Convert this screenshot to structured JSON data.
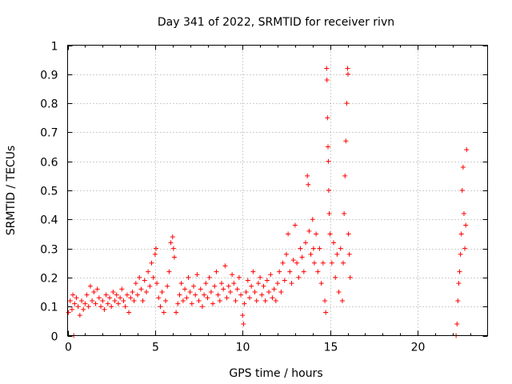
{
  "chart_data": {
    "type": "scatter",
    "title": "Day 341 of 2022, SRMTID for receiver rivn",
    "xlabel": "GPS time / hours",
    "ylabel": "SRMTID / TECUs",
    "xlim": [
      0,
      24
    ],
    "ylim": [
      0,
      1
    ],
    "xticks": [
      0,
      5,
      10,
      15,
      20
    ],
    "xtick_labels": [
      "0",
      "5",
      "10",
      "15",
      "20"
    ],
    "yticks": [
      0,
      0.1,
      0.2,
      0.3,
      0.4,
      0.5,
      0.6,
      0.7,
      0.8,
      0.9,
      1
    ],
    "ytick_labels": [
      "0",
      "0.1",
      "0.2",
      "0.3",
      "0.4",
      "0.5",
      "0.6",
      "0.7",
      "0.8",
      "0.9",
      "1"
    ],
    "grid": true,
    "marker": "+",
    "color": "#ff0000",
    "series": [
      {
        "name": "SRMTID",
        "points": [
          [
            0.05,
            0.08
          ],
          [
            0.15,
            0.12
          ],
          [
            0.25,
            0.09
          ],
          [
            0.3,
            0.14
          ],
          [
            0.35,
            0.0
          ],
          [
            0.4,
            0.11
          ],
          [
            0.5,
            0.13
          ],
          [
            0.6,
            0.1
          ],
          [
            0.7,
            0.07
          ],
          [
            0.8,
            0.12
          ],
          [
            0.9,
            0.09
          ],
          [
            1.0,
            0.11
          ],
          [
            1.1,
            0.14
          ],
          [
            1.2,
            0.1
          ],
          [
            1.3,
            0.17
          ],
          [
            1.4,
            0.12
          ],
          [
            1.5,
            0.15
          ],
          [
            1.6,
            0.11
          ],
          [
            1.7,
            0.16
          ],
          [
            1.8,
            0.13
          ],
          [
            1.9,
            0.1
          ],
          [
            2.0,
            0.12
          ],
          [
            2.1,
            0.09
          ],
          [
            2.2,
            0.14
          ],
          [
            2.3,
            0.11
          ],
          [
            2.4,
            0.13
          ],
          [
            2.5,
            0.1
          ],
          [
            2.6,
            0.15
          ],
          [
            2.7,
            0.12
          ],
          [
            2.8,
            0.14
          ],
          [
            2.9,
            0.11
          ],
          [
            3.0,
            0.13
          ],
          [
            3.1,
            0.16
          ],
          [
            3.2,
            0.12
          ],
          [
            3.3,
            0.1
          ],
          [
            3.4,
            0.14
          ],
          [
            3.5,
            0.08
          ],
          [
            3.6,
            0.13
          ],
          [
            3.7,
            0.15
          ],
          [
            3.8,
            0.12
          ],
          [
            3.9,
            0.18
          ],
          [
            4.0,
            0.14
          ],
          [
            4.1,
            0.2
          ],
          [
            4.2,
            0.16
          ],
          [
            4.3,
            0.12
          ],
          [
            4.4,
            0.19
          ],
          [
            4.5,
            0.15
          ],
          [
            4.6,
            0.22
          ],
          [
            4.7,
            0.17
          ],
          [
            4.8,
            0.25
          ],
          [
            4.9,
            0.2
          ],
          [
            5.0,
            0.28
          ],
          [
            5.05,
            0.3
          ],
          [
            5.1,
            0.18
          ],
          [
            5.2,
            0.13
          ],
          [
            5.3,
            0.1
          ],
          [
            5.4,
            0.15
          ],
          [
            5.5,
            0.08
          ],
          [
            5.6,
            0.12
          ],
          [
            5.7,
            0.17
          ],
          [
            5.8,
            0.22
          ],
          [
            5.9,
            0.32
          ],
          [
            6.0,
            0.34
          ],
          [
            6.05,
            0.3
          ],
          [
            6.1,
            0.27
          ],
          [
            6.2,
            0.08
          ],
          [
            6.3,
            0.11
          ],
          [
            6.4,
            0.14
          ],
          [
            6.5,
            0.18
          ],
          [
            6.6,
            0.12
          ],
          [
            6.7,
            0.16
          ],
          [
            6.8,
            0.13
          ],
          [
            6.9,
            0.2
          ],
          [
            7.0,
            0.15
          ],
          [
            7.1,
            0.11
          ],
          [
            7.2,
            0.17
          ],
          [
            7.3,
            0.14
          ],
          [
            7.4,
            0.21
          ],
          [
            7.5,
            0.12
          ],
          [
            7.6,
            0.16
          ],
          [
            7.7,
            0.1
          ],
          [
            7.8,
            0.14
          ],
          [
            7.9,
            0.18
          ],
          [
            8.0,
            0.13
          ],
          [
            8.1,
            0.2
          ],
          [
            8.2,
            0.15
          ],
          [
            8.3,
            0.11
          ],
          [
            8.4,
            0.17
          ],
          [
            8.5,
            0.22
          ],
          [
            8.6,
            0.14
          ],
          [
            8.7,
            0.12
          ],
          [
            8.8,
            0.18
          ],
          [
            8.9,
            0.16
          ],
          [
            9.0,
            0.24
          ],
          [
            9.1,
            0.13
          ],
          [
            9.2,
            0.17
          ],
          [
            9.3,
            0.15
          ],
          [
            9.4,
            0.21
          ],
          [
            9.5,
            0.18
          ],
          [
            9.6,
            0.12
          ],
          [
            9.7,
            0.16
          ],
          [
            9.8,
            0.2
          ],
          [
            9.9,
            0.14
          ],
          [
            10.0,
            0.07
          ],
          [
            10.05,
            0.04
          ],
          [
            10.1,
            0.11
          ],
          [
            10.2,
            0.15
          ],
          [
            10.3,
            0.19
          ],
          [
            10.4,
            0.13
          ],
          [
            10.5,
            0.17
          ],
          [
            10.6,
            0.22
          ],
          [
            10.7,
            0.15
          ],
          [
            10.8,
            0.12
          ],
          [
            10.9,
            0.18
          ],
          [
            11.0,
            0.2
          ],
          [
            11.1,
            0.14
          ],
          [
            11.2,
            0.17
          ],
          [
            11.3,
            0.12
          ],
          [
            11.4,
            0.19
          ],
          [
            11.5,
            0.15
          ],
          [
            11.6,
            0.21
          ],
          [
            11.7,
            0.13
          ],
          [
            11.8,
            0.16
          ],
          [
            11.9,
            0.12
          ],
          [
            12.0,
            0.18
          ],
          [
            12.1,
            0.22
          ],
          [
            12.2,
            0.15
          ],
          [
            12.3,
            0.25
          ],
          [
            12.4,
            0.19
          ],
          [
            12.5,
            0.28
          ],
          [
            12.6,
            0.35
          ],
          [
            12.7,
            0.22
          ],
          [
            12.8,
            0.18
          ],
          [
            12.9,
            0.26
          ],
          [
            13.0,
            0.38
          ],
          [
            13.1,
            0.25
          ],
          [
            13.2,
            0.2
          ],
          [
            13.3,
            0.3
          ],
          [
            13.4,
            0.27
          ],
          [
            13.5,
            0.22
          ],
          [
            13.6,
            0.32
          ],
          [
            13.7,
            0.55
          ],
          [
            13.75,
            0.52
          ],
          [
            13.8,
            0.36
          ],
          [
            13.9,
            0.28
          ],
          [
            14.0,
            0.4
          ],
          [
            14.05,
            0.3
          ],
          [
            14.1,
            0.25
          ],
          [
            14.2,
            0.35
          ],
          [
            14.3,
            0.22
          ],
          [
            14.4,
            0.3
          ],
          [
            14.5,
            0.18
          ],
          [
            14.6,
            0.25
          ],
          [
            14.7,
            0.12
          ],
          [
            14.75,
            0.08
          ],
          [
            14.8,
            0.92
          ],
          [
            14.82,
            0.88
          ],
          [
            14.85,
            0.75
          ],
          [
            14.88,
            0.65
          ],
          [
            14.9,
            0.6
          ],
          [
            14.92,
            0.5
          ],
          [
            14.95,
            0.42
          ],
          [
            15.0,
            0.35
          ],
          [
            15.1,
            0.25
          ],
          [
            15.2,
            0.32
          ],
          [
            15.3,
            0.2
          ],
          [
            15.4,
            0.28
          ],
          [
            15.5,
            0.15
          ],
          [
            15.6,
            0.3
          ],
          [
            15.7,
            0.12
          ],
          [
            15.75,
            0.25
          ],
          [
            15.8,
            0.42
          ],
          [
            15.85,
            0.55
          ],
          [
            15.9,
            0.67
          ],
          [
            15.95,
            0.8
          ],
          [
            16.0,
            0.92
          ],
          [
            16.02,
            0.9
          ],
          [
            16.05,
            0.35
          ],
          [
            16.1,
            0.28
          ],
          [
            16.15,
            0.2
          ],
          [
            22.2,
            0.0
          ],
          [
            22.25,
            0.04
          ],
          [
            22.3,
            0.12
          ],
          [
            22.35,
            0.18
          ],
          [
            22.4,
            0.22
          ],
          [
            22.45,
            0.28
          ],
          [
            22.5,
            0.35
          ],
          [
            22.55,
            0.5
          ],
          [
            22.6,
            0.58
          ],
          [
            22.65,
            0.42
          ],
          [
            22.7,
            0.3
          ],
          [
            22.75,
            0.38
          ],
          [
            22.8,
            0.64
          ]
        ]
      }
    ]
  }
}
